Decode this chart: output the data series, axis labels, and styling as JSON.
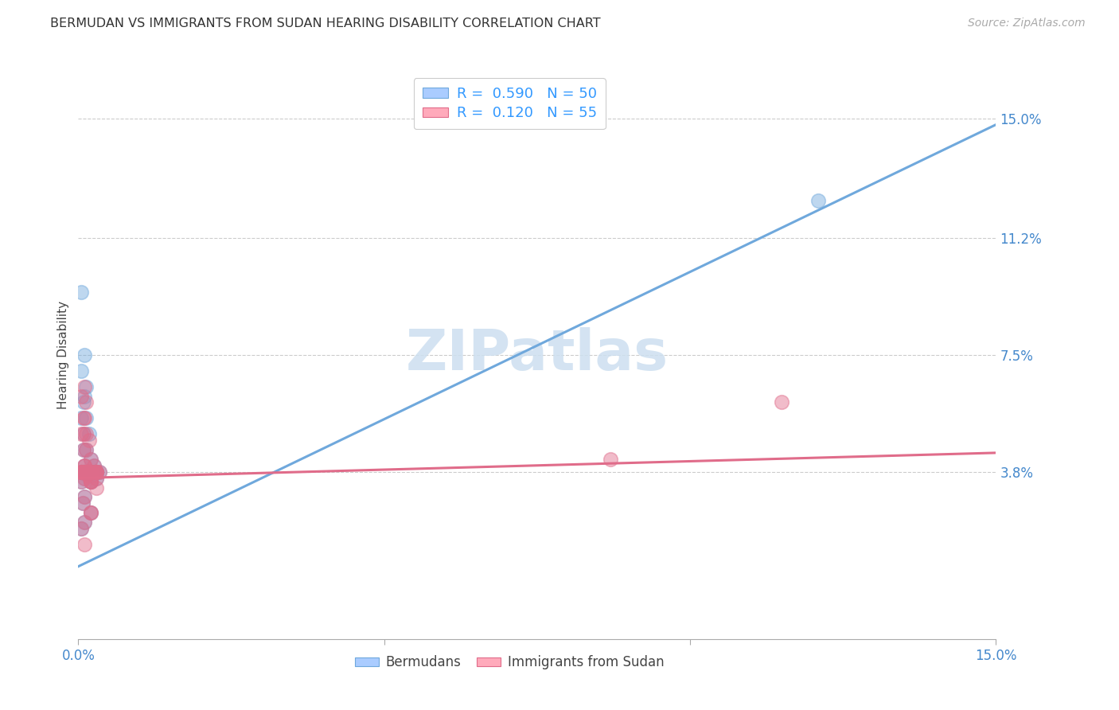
{
  "title": "BERMUDAN VS IMMIGRANTS FROM SUDAN HEARING DISABILITY CORRELATION CHART",
  "source": "Source: ZipAtlas.com",
  "ylabel": "Hearing Disability",
  "xlim": [
    0,
    0.15
  ],
  "ylim": [
    -0.015,
    0.165
  ],
  "yticks": [
    0.038,
    0.075,
    0.112,
    0.15
  ],
  "ytick_labels": [
    "3.8%",
    "7.5%",
    "11.2%",
    "15.0%"
  ],
  "grid_color": "#cccccc",
  "background_color": "#ffffff",
  "watermark_text": "ZIPatlas",
  "watermark_color": "#cddff0",
  "series": [
    {
      "name": "Bermudans",
      "color": "#6fa8dc",
      "R": 0.59,
      "N": 50,
      "trend_x": [
        0.0,
        0.15
      ],
      "trend_y": [
        0.008,
        0.148
      ],
      "px": [
        0.0005,
        0.001,
        0.0015,
        0.002,
        0.0025,
        0.003,
        0.0008,
        0.0012,
        0.0018,
        0.0022,
        0.0005,
        0.001,
        0.0015,
        0.002,
        0.0025,
        0.003,
        0.0035,
        0.0008,
        0.0012,
        0.0018,
        0.0006,
        0.001,
        0.0016,
        0.002,
        0.003,
        0.0008,
        0.0012,
        0.0005,
        0.001,
        0.0015,
        0.0005,
        0.001,
        0.002,
        0.003,
        0.0008,
        0.001,
        0.0014,
        0.0005,
        0.001,
        0.002,
        0.0005,
        0.001,
        0.002,
        0.003,
        0.0007,
        0.001,
        0.0005,
        0.121,
        0.002,
        0.003
      ],
      "py": [
        0.038,
        0.04,
        0.037,
        0.042,
        0.038,
        0.036,
        0.045,
        0.055,
        0.05,
        0.038,
        0.038,
        0.036,
        0.038,
        0.035,
        0.04,
        0.038,
        0.038,
        0.06,
        0.065,
        0.038,
        0.038,
        0.038,
        0.038,
        0.035,
        0.038,
        0.05,
        0.045,
        0.07,
        0.075,
        0.038,
        0.035,
        0.03,
        0.025,
        0.038,
        0.038,
        0.038,
        0.038,
        0.095,
        0.038,
        0.038,
        0.055,
        0.062,
        0.038,
        0.038,
        0.028,
        0.022,
        0.02,
        0.124,
        0.038,
        0.038
      ]
    },
    {
      "name": "Immigrants from Sudan",
      "color": "#e06c8a",
      "R": 0.12,
      "N": 55,
      "trend_x": [
        0.0,
        0.15
      ],
      "trend_y": [
        0.036,
        0.044
      ],
      "px": [
        0.0005,
        0.001,
        0.0015,
        0.002,
        0.0025,
        0.003,
        0.0008,
        0.0012,
        0.0018,
        0.0022,
        0.0005,
        0.001,
        0.0015,
        0.002,
        0.0025,
        0.003,
        0.0035,
        0.0008,
        0.0012,
        0.0018,
        0.0006,
        0.001,
        0.0016,
        0.002,
        0.003,
        0.0008,
        0.0012,
        0.0005,
        0.001,
        0.0015,
        0.0005,
        0.001,
        0.002,
        0.003,
        0.0008,
        0.001,
        0.0014,
        0.0005,
        0.001,
        0.002,
        0.0005,
        0.001,
        0.002,
        0.003,
        0.0007,
        0.001,
        0.0005,
        0.001,
        0.002,
        0.003,
        0.115,
        0.001,
        0.002,
        0.087,
        0.001
      ],
      "py": [
        0.038,
        0.04,
        0.037,
        0.042,
        0.038,
        0.036,
        0.045,
        0.05,
        0.048,
        0.038,
        0.038,
        0.036,
        0.038,
        0.035,
        0.04,
        0.038,
        0.038,
        0.055,
        0.06,
        0.038,
        0.038,
        0.038,
        0.038,
        0.035,
        0.038,
        0.05,
        0.045,
        0.062,
        0.065,
        0.038,
        0.035,
        0.03,
        0.025,
        0.038,
        0.038,
        0.038,
        0.038,
        0.038,
        0.038,
        0.038,
        0.05,
        0.055,
        0.038,
        0.038,
        0.028,
        0.022,
        0.02,
        0.038,
        0.035,
        0.033,
        0.06,
        0.015,
        0.025,
        0.042,
        0.04
      ]
    }
  ],
  "title_fontsize": 11.5,
  "axis_label_fontsize": 11,
  "tick_fontsize": 12,
  "source_fontsize": 10,
  "watermark_fontsize": 52,
  "legend_R_color": "#3399ff",
  "legend_N_color": "#3399ff",
  "tick_color": "#4488cc"
}
